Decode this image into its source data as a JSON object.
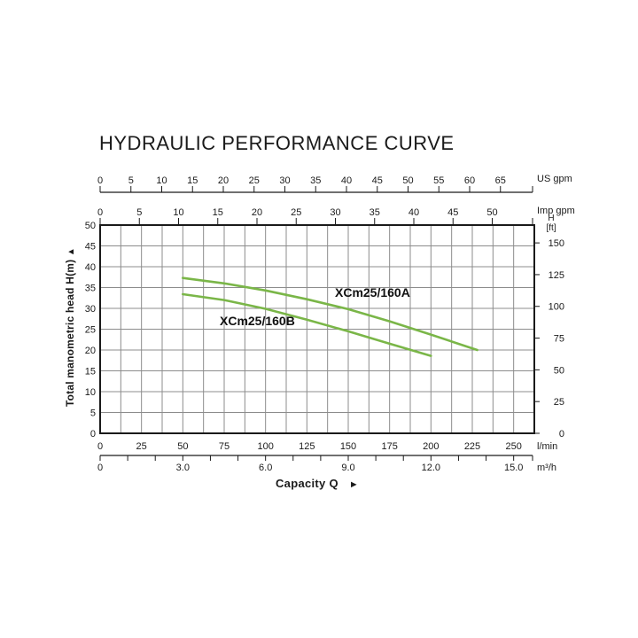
{
  "page": {
    "title": "HYDRAULIC PERFORMANCE CURVE"
  },
  "colors": {
    "curve": "#7ab648",
    "grid": "#8c8c8c",
    "frame": "#1a1a1a",
    "text": "#1a1a1a",
    "background": "#ffffff"
  },
  "chart_data": {
    "type": "line",
    "title": "HYDRAULIC PERFORMANCE CURVE",
    "xlabel": "Capacity Q",
    "xlabel_arrow": "►",
    "grid": true,
    "x_range_lmin": [
      0,
      262.5
    ],
    "y_range_m": [
      0,
      50
    ],
    "x_grid_step_lmin": 12.5,
    "y_grid_step_m": 5,
    "x_axis_us_gpm": {
      "unit": "US gpm",
      "ticks": [
        0,
        5,
        10,
        15,
        20,
        25,
        30,
        35,
        40,
        45,
        50,
        55,
        60,
        65
      ]
    },
    "x_axis_imp_gpm": {
      "unit": "Imp gpm",
      "ticks": [
        0,
        5,
        10,
        15,
        20,
        25,
        30,
        35,
        40,
        45,
        50
      ]
    },
    "x_axis_lmin": {
      "unit": "l/min",
      "ticks": [
        0,
        25,
        50,
        75,
        100,
        125,
        150,
        175,
        200,
        225,
        250
      ]
    },
    "x_axis_m3h": {
      "unit": "m³/h",
      "minor_tick_values": [
        0,
        1,
        2,
        3,
        4,
        5,
        6,
        7,
        8,
        9,
        10,
        11,
        12,
        13,
        14,
        15
      ],
      "labels": [
        {
          "v": 0,
          "text": "0"
        },
        {
          "v": 3,
          "text": "3.0"
        },
        {
          "v": 6,
          "text": "6.0"
        },
        {
          "v": 9,
          "text": "9.0"
        },
        {
          "v": 12,
          "text": "12.0"
        },
        {
          "v": 15,
          "text": "15.0"
        }
      ]
    },
    "y_axis_m": {
      "label": "Total manometric head H(m)",
      "arrow": "▲",
      "ticks": [
        0,
        5,
        10,
        15,
        20,
        25,
        30,
        35,
        40,
        45,
        50
      ]
    },
    "y_axis_ft": {
      "label_line1": "H",
      "label_line2": "[ft]",
      "ticks": [
        0,
        25,
        50,
        75,
        100,
        125,
        150
      ]
    },
    "series": [
      {
        "name": "XCm25/160A",
        "color": "#7ab648",
        "points_lmin_m": [
          [
            50,
            37.3
          ],
          [
            75,
            36.0
          ],
          [
            100,
            34.3
          ],
          [
            125,
            32.2
          ],
          [
            150,
            29.8
          ],
          [
            175,
            26.9
          ],
          [
            200,
            23.7
          ],
          [
            228,
            20.0
          ]
        ]
      },
      {
        "name": "XCm25/160B",
        "color": "#7ab648",
        "points_lmin_m": [
          [
            50,
            33.4
          ],
          [
            75,
            32.0
          ],
          [
            100,
            29.9
          ],
          [
            125,
            27.3
          ],
          [
            150,
            24.5
          ],
          [
            175,
            21.5
          ],
          [
            200,
            18.6
          ]
        ]
      }
    ]
  }
}
